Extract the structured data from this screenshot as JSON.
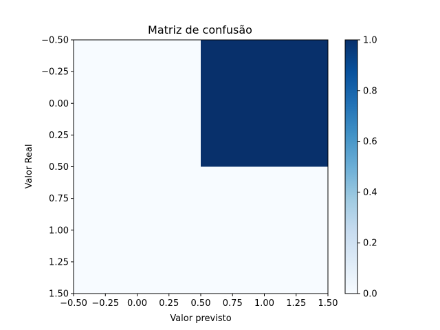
{
  "chart_data": {
    "type": "heatmap",
    "title": "Matriz de confusão",
    "xlabel": "Valor previsto",
    "ylabel": "Valor Real",
    "xlim": [
      -0.5,
      1.5
    ],
    "ylim": [
      1.5,
      -0.5
    ],
    "y_inverted": true,
    "matrix": [
      [
        0,
        1
      ],
      [
        0,
        0
      ]
    ],
    "colormap": "Blues",
    "color_min": "#f7fbff",
    "color_max": "#08306b",
    "xticks": [
      "−0.50",
      "−0.25",
      "0.00",
      "0.25",
      "0.50",
      "0.75",
      "1.00",
      "1.25",
      "1.50"
    ],
    "yticks": [
      "−0.50",
      "−0.25",
      "0.00",
      "0.25",
      "0.50",
      "0.75",
      "1.00",
      "1.25",
      "1.50"
    ],
    "colorbar": {
      "range": [
        0.0,
        1.0
      ],
      "ticks": [
        "0.0",
        "0.2",
        "0.4",
        "0.6",
        "0.8",
        "1.0"
      ]
    },
    "grid": false
  }
}
